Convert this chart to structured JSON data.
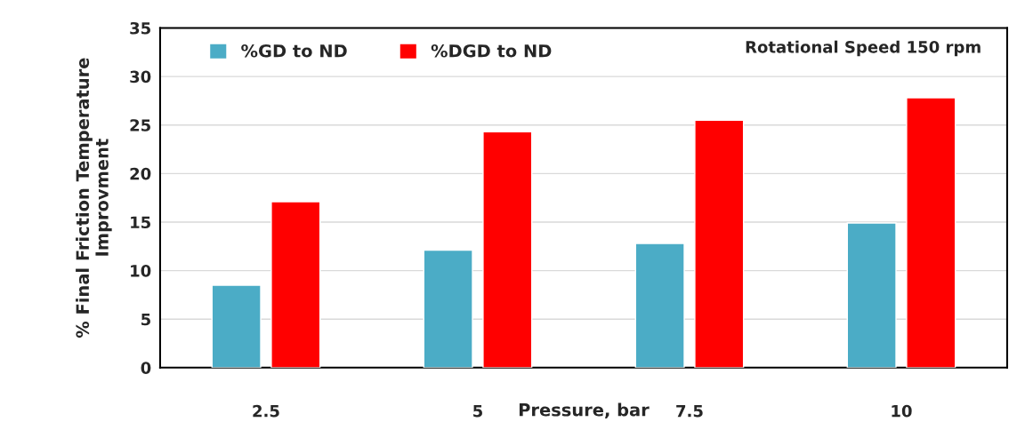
{
  "chart_data": {
    "type": "bar",
    "categories": [
      "2.5",
      "5",
      "7.5",
      "10"
    ],
    "series": [
      {
        "name": "%GD to ND",
        "color": "#4bacc6",
        "values": [
          8.5,
          12.1,
          12.8,
          14.9
        ]
      },
      {
        "name": "%DGD to ND",
        "color": "#ff0000",
        "values": [
          17.1,
          24.3,
          25.5,
          27.8
        ]
      }
    ],
    "xlabel": "Pressure, bar",
    "ylabel": "% Final Friction Temperature\nImprovment",
    "ylim": [
      0,
      35
    ],
    "yticks": [
      0,
      5,
      10,
      15,
      20,
      25,
      30,
      35
    ],
    "grid": "y",
    "legend": "top left",
    "annotations": [
      "Rotational Speed 150 rpm"
    ]
  }
}
